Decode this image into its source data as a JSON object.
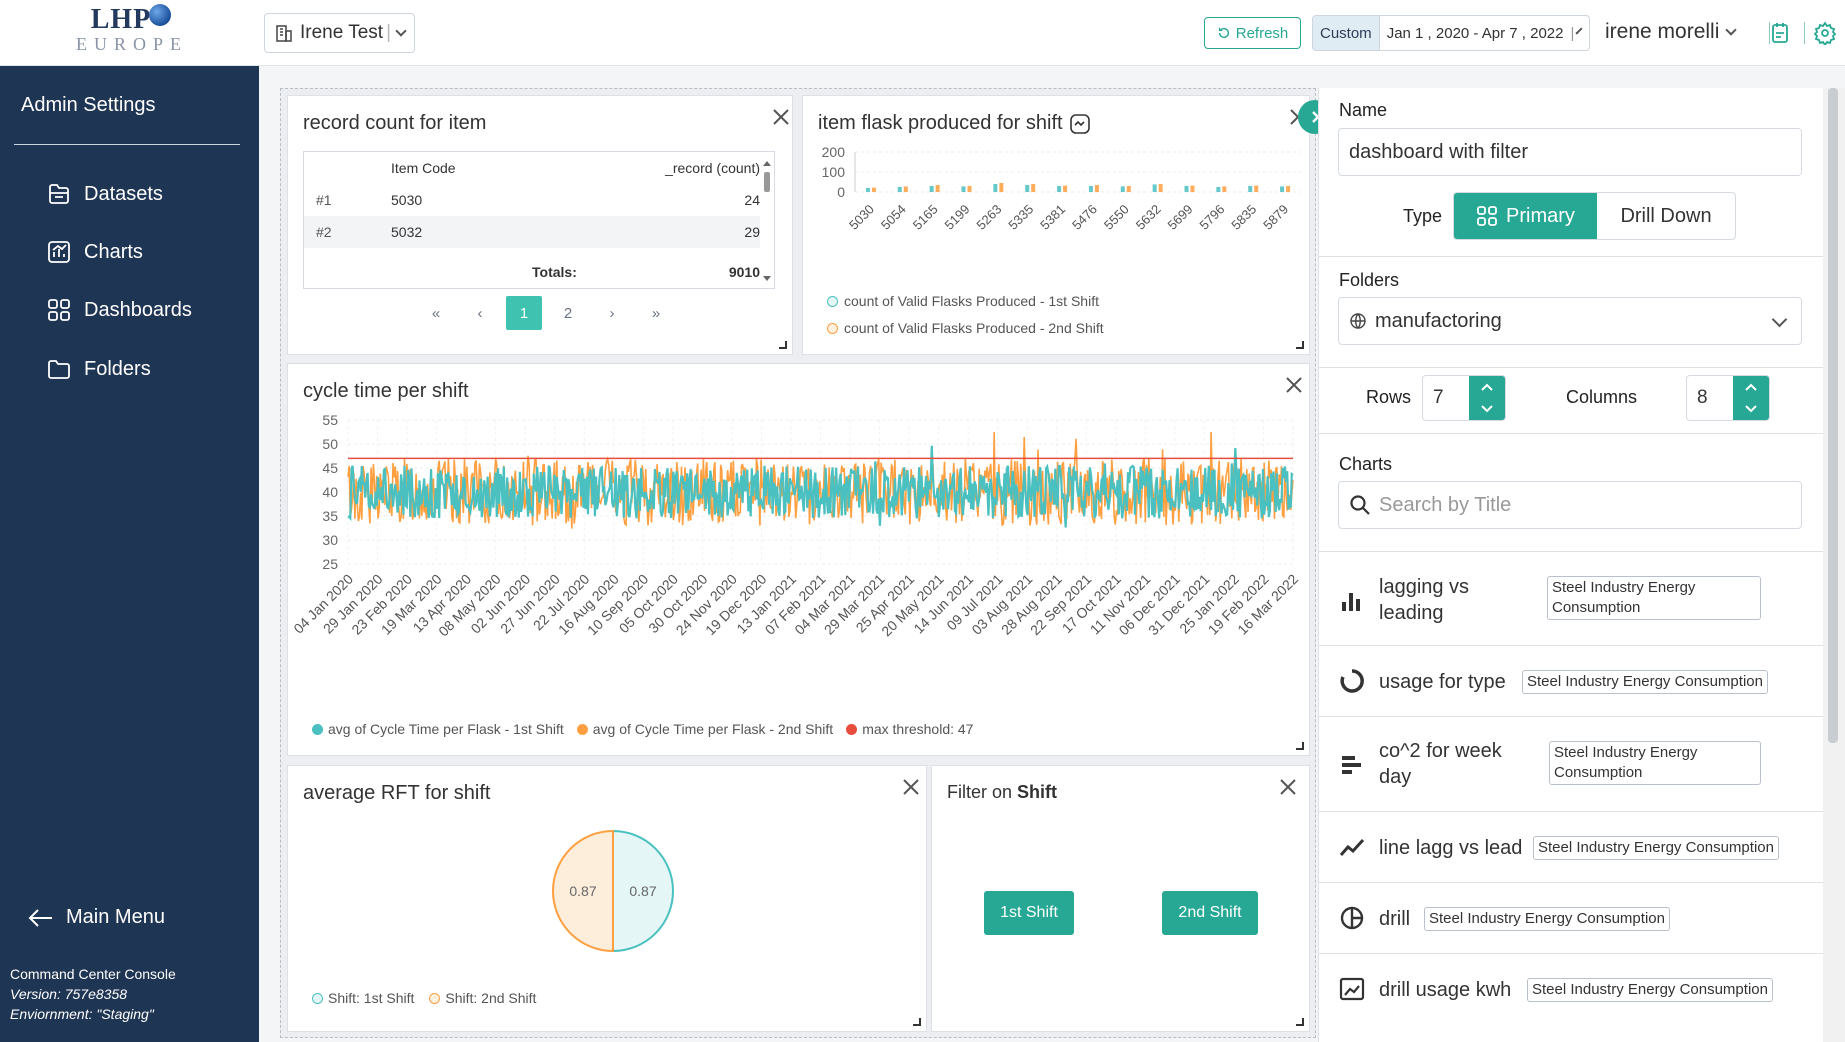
{
  "header": {
    "logo_top": "LHP",
    "logo_bottom": "EUROPE",
    "workspace": "Irene Test",
    "refresh_label": "Refresh",
    "date_mode": "Custom",
    "date_range": "Jan 1 , 2020 - Apr 7 , 2022",
    "user": "irene morelli"
  },
  "sidebar": {
    "title": "Admin Settings",
    "items": [
      {
        "label": "Datasets",
        "icon": "datasets-icon"
      },
      {
        "label": "Charts",
        "icon": "charts-icon"
      },
      {
        "label": "Dashboards",
        "icon": "dashboards-icon"
      },
      {
        "label": "Folders",
        "icon": "folder-icon"
      }
    ],
    "main_menu": "Main Menu",
    "footer": {
      "app": "Command Center Console",
      "version": "Version: 757e8358",
      "env": "Enviornment: \"Staging\""
    }
  },
  "cards": {
    "record": {
      "title": "record count for item",
      "columns": [
        "Item Code",
        "_record (count)"
      ],
      "rows": [
        {
          "idx": "#1",
          "code": "5030",
          "count": "24"
        },
        {
          "idx": "#2",
          "code": "5032",
          "count": "29"
        }
      ],
      "totals_label": "Totals:",
      "totals_value": "9010",
      "pages": [
        "1",
        "2"
      ]
    },
    "flask": {
      "title": "item flask produced for shift",
      "y_ticks": [
        "200",
        "100",
        "0"
      ],
      "x_ticks": [
        "5030",
        "5054",
        "5165",
        "5199",
        "5263",
        "5335",
        "5381",
        "5476",
        "5550",
        "5632",
        "5699",
        "5796",
        "5835",
        "5879"
      ],
      "legend": [
        "count of Valid Flasks Produced - 1st Shift",
        "count of Valid Flasks Produced - 2nd Shift"
      ]
    },
    "cycle": {
      "title": "cycle time per shift",
      "legend": [
        "avg of Cycle Time per Flask - 1st Shift",
        "avg of Cycle Time per Flask - 2nd Shift",
        "max threshold: 47"
      ]
    },
    "rft": {
      "title": "average RFT for shift",
      "legend": [
        "Shift: 1st Shift",
        "Shift: 2nd Shift"
      ]
    },
    "filter": {
      "title_prefix": "Filter on",
      "title_bold": "Shift",
      "btn1": "1st Shift",
      "btn2": "2nd Shift"
    }
  },
  "colors": {
    "teal": "#4bc0c0",
    "orange": "#ff9f40",
    "red": "#e74c3c",
    "accent": "#27a894",
    "sidebar_bg": "#1f3554"
  },
  "chart_data": [
    {
      "type": "bar",
      "title": "item flask produced for shift",
      "categories": [
        "5030",
        "5054",
        "5165",
        "5199",
        "5263",
        "5335",
        "5381",
        "5476",
        "5550",
        "5632",
        "5699",
        "5796",
        "5835",
        "5879"
      ],
      "series": [
        {
          "name": "count of Valid Flasks Produced - 1st Shift",
          "values": [
            20,
            25,
            30,
            28,
            40,
            35,
            30,
            30,
            28,
            38,
            30,
            25,
            30,
            28
          ]
        },
        {
          "name": "count of Valid Flasks Produced - 2nd Shift",
          "values": [
            22,
            28,
            35,
            30,
            45,
            40,
            32,
            35,
            30,
            40,
            32,
            28,
            32,
            30
          ]
        }
      ],
      "ylim": [
        0,
        200
      ],
      "y_ticks": [
        200,
        100,
        0
      ]
    },
    {
      "type": "line",
      "title": "cycle time per shift",
      "x_ticks": [
        "04 Jan 2020",
        "29 Jan 2020",
        "23 Feb 2020",
        "19 Mar 2020",
        "13 Apr 2020",
        "08 May 2020",
        "02 Jun 2020",
        "27 Jun 2020",
        "22 Jul 2020",
        "16 Aug 2020",
        "10 Sep 2020",
        "05 Oct 2020",
        "30 Oct 2020",
        "24 Nov 2020",
        "19 Dec 2020",
        "13 Jan 2021",
        "07 Feb 2021",
        "04 Mar 2021",
        "29 Mar 2021",
        "25 Apr 2021",
        "20 May 2021",
        "14 Jun 2021",
        "09 Jul 2021",
        "03 Aug 2021",
        "28 Aug 2021",
        "22 Sep 2021",
        "17 Oct 2021",
        "11 Nov 2021",
        "06 Dec 2021",
        "31 Dec 2021",
        "25 Jan 2022",
        "19 Feb 2022",
        "16 Mar 2022"
      ],
      "y_ticks": [
        55,
        50,
        45,
        40,
        35,
        30,
        25
      ],
      "ylim": [
        25,
        55
      ],
      "series": [
        {
          "name": "avg of Cycle Time per Flask - 1st Shift",
          "approx_range": [
            33,
            46
          ],
          "typical": 40
        },
        {
          "name": "avg of Cycle Time per Flask - 2nd Shift",
          "approx_range": [
            31,
            52
          ],
          "typical": 40
        },
        {
          "name": "max threshold: 47",
          "constant": 47
        }
      ]
    },
    {
      "type": "pie",
      "title": "average RFT for shift",
      "slices": [
        {
          "label": "Shift: 1st Shift",
          "value": 0.87
        },
        {
          "label": "Shift: 2nd Shift",
          "value": 0.87
        }
      ]
    }
  ],
  "panel": {
    "name_label": "Name",
    "name_value": "dashboard with filter",
    "type_label": "Type",
    "type_primary": "Primary",
    "type_drill": "Drill Down",
    "folders_label": "Folders",
    "folder_value": "manufactoring",
    "rows_label": "Rows",
    "rows_value": "7",
    "cols_label": "Columns",
    "cols_value": "8",
    "charts_label": "Charts",
    "search_placeholder": "Search by Title",
    "charts": [
      {
        "name": "lagging vs leading",
        "tag": "Steel Industry Energy Consumption",
        "icon": "bar-chart-icon"
      },
      {
        "name": "usage for type",
        "tag": "Steel Industry Energy Consumption",
        "icon": "donut-chart-icon"
      },
      {
        "name": "co^2 for week day",
        "tag": "Steel Industry Energy Consumption",
        "icon": "horizontal-bar-icon"
      },
      {
        "name": "line lagg vs lead",
        "tag": "Steel Industry Energy Consumption",
        "icon": "line-chart-icon"
      },
      {
        "name": "drill",
        "tag": "Steel Industry Energy Consumption",
        "icon": "pie-chart-icon"
      },
      {
        "name": "drill usage kwh",
        "tag": "Steel Industry Energy Consumption",
        "icon": "area-chart-icon"
      }
    ]
  }
}
